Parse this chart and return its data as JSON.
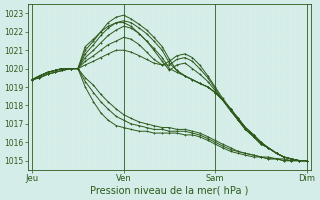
{
  "xlabel": "Pression niveau de la mer( hPa )",
  "bg_color": "#d4ede8",
  "grid_color": "#c8e8e0",
  "grid_minor_color": "#daf0ea",
  "line_color": "#2d5a1b",
  "ylim": [
    1014.5,
    1023.5
  ],
  "yticks": [
    1015,
    1016,
    1017,
    1018,
    1019,
    1020,
    1021,
    1022,
    1023
  ],
  "day_positions": [
    0,
    1,
    2,
    3
  ],
  "day_labels": [
    "Jeu",
    "Ven",
    "Sam",
    "Dim"
  ],
  "xlim": [
    -0.05,
    3.05
  ],
  "lines": [
    {
      "x": [
        0.0,
        0.08,
        0.17,
        0.25,
        0.33,
        0.42,
        0.5,
        0.5,
        0.58,
        0.67,
        0.75,
        0.83,
        0.92,
        1.0,
        1.08,
        1.17,
        1.25,
        1.33,
        1.42,
        1.5,
        1.58,
        1.67,
        1.75,
        1.83,
        1.92,
        2.0,
        2.08,
        2.17,
        2.25,
        2.33,
        2.42,
        2.5,
        2.58,
        2.67,
        2.75,
        2.83,
        2.92,
        3.0
      ],
      "y": [
        1019.4,
        1019.6,
        1019.8,
        1019.9,
        1020.0,
        1020.0,
        1020.0,
        1020.0,
        1021.0,
        1021.5,
        1022.0,
        1022.5,
        1022.8,
        1022.9,
        1022.7,
        1022.4,
        1022.1,
        1021.7,
        1021.2,
        1020.5,
        1019.9,
        1019.6,
        1019.4,
        1019.2,
        1019.0,
        1018.7,
        1018.3,
        1017.8,
        1017.3,
        1016.8,
        1016.4,
        1016.0,
        1015.7,
        1015.4,
        1015.2,
        1015.1,
        1015.0,
        1015.0
      ]
    },
    {
      "x": [
        0.0,
        0.08,
        0.17,
        0.25,
        0.33,
        0.42,
        0.5,
        0.5,
        0.58,
        0.67,
        0.75,
        0.83,
        0.92,
        1.0,
        1.08,
        1.17,
        1.25,
        1.33,
        1.42,
        1.5,
        1.58,
        1.67,
        1.75,
        1.83,
        1.92,
        2.0,
        2.08,
        2.17,
        2.25,
        2.33,
        2.42,
        2.5,
        2.58,
        2.67,
        2.75,
        2.83,
        2.92,
        3.0
      ],
      "y": [
        1019.4,
        1019.6,
        1019.8,
        1019.9,
        1020.0,
        1020.0,
        1020.0,
        1020.0,
        1020.8,
        1021.3,
        1021.8,
        1022.2,
        1022.5,
        1022.6,
        1022.5,
        1022.2,
        1021.9,
        1021.5,
        1021.0,
        1020.3,
        1019.9,
        1019.6,
        1019.4,
        1019.2,
        1019.0,
        1018.7,
        1018.3,
        1017.8,
        1017.3,
        1016.8,
        1016.4,
        1016.0,
        1015.7,
        1015.4,
        1015.2,
        1015.1,
        1015.0,
        1015.0
      ]
    },
    {
      "x": [
        0.0,
        0.08,
        0.17,
        0.25,
        0.33,
        0.42,
        0.5,
        0.5,
        0.58,
        0.67,
        0.75,
        0.83,
        0.92,
        1.0,
        1.08,
        1.17,
        1.25,
        1.33,
        1.42,
        1.5,
        1.58,
        1.67,
        1.75,
        1.83,
        1.92,
        2.0,
        2.08,
        2.17,
        2.25,
        2.33,
        2.42,
        2.5,
        2.58,
        2.67,
        2.75,
        2.83,
        2.92,
        3.0
      ],
      "y": [
        1019.4,
        1019.6,
        1019.8,
        1019.9,
        1020.0,
        1020.0,
        1020.0,
        1020.0,
        1020.6,
        1021.0,
        1021.4,
        1021.8,
        1022.1,
        1022.3,
        1022.2,
        1021.9,
        1021.5,
        1021.1,
        1020.6,
        1020.0,
        1019.8,
        1019.6,
        1019.4,
        1019.2,
        1019.0,
        1018.7,
        1018.3,
        1017.8,
        1017.3,
        1016.8,
        1016.4,
        1016.0,
        1015.7,
        1015.4,
        1015.2,
        1015.1,
        1015.0,
        1015.0
      ]
    },
    {
      "x": [
        0.0,
        0.08,
        0.17,
        0.25,
        0.33,
        0.42,
        0.5,
        0.5,
        0.58,
        0.67,
        0.75,
        0.83,
        0.92,
        1.0,
        1.08,
        1.17,
        1.25,
        1.33,
        1.42,
        1.5,
        1.58,
        1.67,
        1.75,
        1.83,
        1.92,
        2.0,
        2.08,
        2.17,
        2.25,
        2.33,
        2.42,
        2.5,
        2.58,
        2.67,
        2.75,
        2.83,
        2.92,
        3.0
      ],
      "y": [
        1019.4,
        1019.6,
        1019.8,
        1019.9,
        1020.0,
        1020.0,
        1020.0,
        1020.0,
        1021.2,
        1021.6,
        1022.0,
        1022.3,
        1022.5,
        1022.5,
        1022.3,
        1021.9,
        1021.5,
        1021.0,
        1020.4,
        1019.9,
        1020.2,
        1020.3,
        1020.0,
        1019.7,
        1019.3,
        1018.8,
        1018.3,
        1017.7,
        1017.2,
        1016.7,
        1016.3,
        1015.9,
        1015.7,
        1015.4,
        1015.2,
        1015.1,
        1015.0,
        1015.0
      ]
    },
    {
      "x": [
        0.0,
        0.08,
        0.17,
        0.25,
        0.33,
        0.42,
        0.5,
        0.5,
        0.58,
        0.67,
        0.75,
        0.83,
        0.92,
        1.0,
        1.08,
        1.17,
        1.25,
        1.33,
        1.42,
        1.5,
        1.58,
        1.67,
        1.75,
        1.83,
        1.92,
        2.0,
        2.08,
        2.17,
        2.25,
        2.33,
        2.42,
        2.5,
        2.58,
        2.67,
        2.75,
        2.83,
        2.92,
        3.0
      ],
      "y": [
        1019.4,
        1019.6,
        1019.8,
        1019.9,
        1020.0,
        1020.0,
        1020.0,
        1020.0,
        1020.4,
        1020.7,
        1021.0,
        1021.3,
        1021.5,
        1021.7,
        1021.6,
        1021.3,
        1020.9,
        1020.5,
        1020.2,
        1020.2,
        1020.5,
        1020.6,
        1020.4,
        1020.0,
        1019.5,
        1018.9,
        1018.3,
        1017.7,
        1017.2,
        1016.7,
        1016.3,
        1015.9,
        1015.7,
        1015.4,
        1015.2,
        1015.1,
        1015.0,
        1015.0
      ]
    },
    {
      "x": [
        0.0,
        0.08,
        0.17,
        0.25,
        0.33,
        0.42,
        0.5,
        0.5,
        0.58,
        0.67,
        0.75,
        0.83,
        0.92,
        1.0,
        1.08,
        1.17,
        1.25,
        1.33,
        1.42,
        1.5,
        1.58,
        1.67,
        1.75,
        1.83,
        1.92,
        2.0,
        2.08,
        2.17,
        2.25,
        2.33,
        2.42,
        2.5,
        2.58,
        2.67,
        2.75,
        2.83,
        2.92,
        3.0
      ],
      "y": [
        1019.4,
        1019.6,
        1019.8,
        1019.9,
        1020.0,
        1020.0,
        1020.0,
        1020.0,
        1020.2,
        1020.4,
        1020.6,
        1020.8,
        1021.0,
        1021.0,
        1020.9,
        1020.7,
        1020.5,
        1020.3,
        1020.2,
        1020.4,
        1020.7,
        1020.8,
        1020.6,
        1020.2,
        1019.6,
        1019.0,
        1018.4,
        1017.8,
        1017.2,
        1016.7,
        1016.3,
        1015.9,
        1015.7,
        1015.4,
        1015.2,
        1015.1,
        1015.0,
        1015.0
      ]
    },
    {
      "x": [
        0.0,
        0.08,
        0.17,
        0.25,
        0.33,
        0.42,
        0.5,
        0.58,
        0.67,
        0.75,
        0.83,
        0.92,
        1.0,
        1.08,
        1.17,
        1.25,
        1.33,
        1.42,
        1.5,
        1.58,
        1.67,
        1.75,
        1.83,
        1.92,
        2.0,
        2.08,
        2.17,
        2.25,
        2.33,
        2.42,
        2.5,
        2.58,
        2.67,
        2.75,
        2.83,
        2.92,
        3.0
      ],
      "y": [
        1019.4,
        1019.5,
        1019.7,
        1019.8,
        1019.9,
        1020.0,
        1020.0,
        1019.5,
        1019.1,
        1018.6,
        1018.2,
        1017.8,
        1017.5,
        1017.3,
        1017.1,
        1017.0,
        1016.9,
        1016.8,
        1016.8,
        1016.7,
        1016.7,
        1016.6,
        1016.5,
        1016.3,
        1016.1,
        1015.9,
        1015.7,
        1015.5,
        1015.4,
        1015.3,
        1015.2,
        1015.2,
        1015.1,
        1015.1,
        1015.0,
        1015.0,
        1015.0
      ]
    },
    {
      "x": [
        0.0,
        0.08,
        0.17,
        0.25,
        0.33,
        0.42,
        0.5,
        0.58,
        0.67,
        0.75,
        0.83,
        0.92,
        1.0,
        1.08,
        1.17,
        1.25,
        1.33,
        1.42,
        1.5,
        1.58,
        1.67,
        1.75,
        1.83,
        1.92,
        2.0,
        2.08,
        2.17,
        2.25,
        2.33,
        2.42,
        2.5,
        2.58,
        2.67,
        2.75,
        2.83,
        2.92,
        3.0
      ],
      "y": [
        1019.4,
        1019.5,
        1019.7,
        1019.8,
        1019.9,
        1020.0,
        1020.0,
        1019.3,
        1018.7,
        1018.2,
        1017.8,
        1017.4,
        1017.2,
        1017.0,
        1016.9,
        1016.8,
        1016.7,
        1016.7,
        1016.6,
        1016.6,
        1016.6,
        1016.5,
        1016.4,
        1016.2,
        1016.0,
        1015.8,
        1015.6,
        1015.5,
        1015.4,
        1015.3,
        1015.2,
        1015.1,
        1015.1,
        1015.0,
        1015.0,
        1015.0,
        1015.0
      ]
    },
    {
      "x": [
        0.0,
        0.08,
        0.17,
        0.25,
        0.33,
        0.42,
        0.5,
        0.58,
        0.67,
        0.75,
        0.83,
        0.92,
        1.0,
        1.08,
        1.17,
        1.25,
        1.33,
        1.42,
        1.5,
        1.58,
        1.67,
        1.75,
        1.83,
        1.92,
        2.0,
        2.08,
        2.17,
        2.25,
        2.33,
        2.42,
        2.5,
        2.58,
        2.67,
        2.75,
        2.83,
        2.92,
        3.0
      ],
      "y": [
        1019.4,
        1019.5,
        1019.7,
        1019.8,
        1019.9,
        1020.0,
        1020.0,
        1019.0,
        1018.2,
        1017.6,
        1017.2,
        1016.9,
        1016.8,
        1016.7,
        1016.6,
        1016.6,
        1016.5,
        1016.5,
        1016.5,
        1016.5,
        1016.4,
        1016.4,
        1016.3,
        1016.1,
        1015.9,
        1015.7,
        1015.5,
        1015.4,
        1015.3,
        1015.2,
        1015.2,
        1015.1,
        1015.1,
        1015.0,
        1015.0,
        1015.0,
        1015.0
      ]
    }
  ]
}
